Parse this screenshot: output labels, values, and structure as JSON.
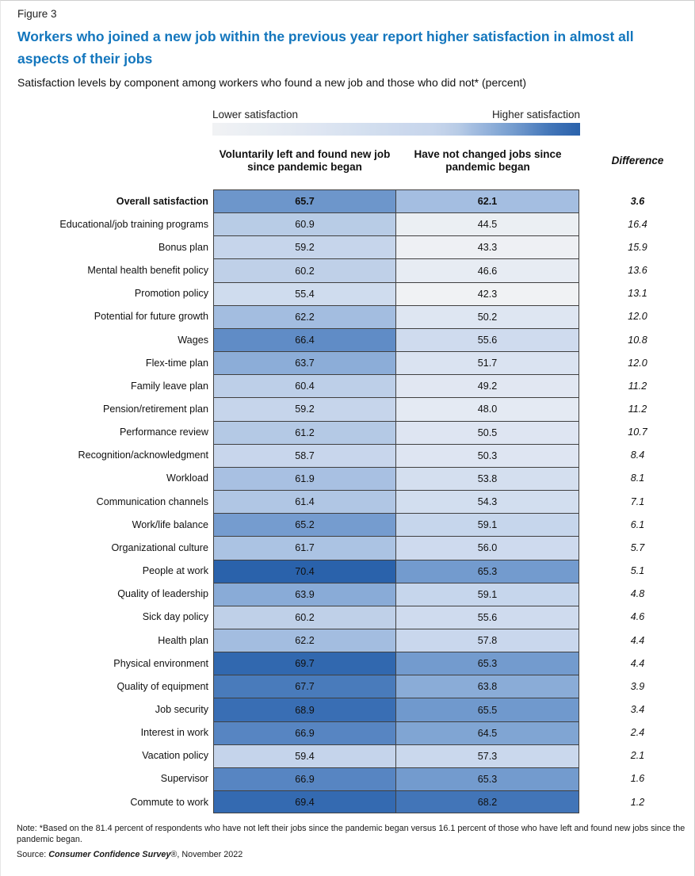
{
  "figure_label": "Figure 3",
  "title": "Workers who joined a new job within the previous year report higher satisfaction in almost all aspects of their jobs",
  "subtitle": "Satisfaction levels by component among workers who found a new job and those who did not* (percent)",
  "legend": {
    "low_label": "Lower satisfaction",
    "high_label": "Higher satisfaction"
  },
  "columns": {
    "col1": "Voluntarily left and found new job since pandemic began",
    "col2": "Have not changed jobs since pandemic began",
    "diff": "Difference"
  },
  "note": "Note: *Based on the 81.4 percent of respondents who have not left their jobs since the pandemic began versus 16.1 percent of those who have left and found new jobs since the pandemic began.",
  "source": {
    "prefix": "Source: ",
    "name": "Consumer Confidence Survey",
    "registered": "®",
    "suffix": ", November 2022"
  },
  "colors": {
    "title_blue": "#1376BD",
    "grid_border": "#404040",
    "page_border": "#CFCFCF",
    "scale_low": "#F1F2F4",
    "scale_high": "#2A62AB"
  },
  "chart_data": {
    "type": "heatmap",
    "title": "Workers who joined a new job within the previous year report higher satisfaction in almost all aspects of their jobs",
    "subtitle": "Satisfaction levels by component among workers who found a new job and those who did not* (percent)",
    "units": "percent",
    "legend": {
      "low": "Lower satisfaction",
      "high": "Higher satisfaction"
    },
    "categories": [
      "Overall satisfaction",
      "Educational/job training programs",
      "Bonus plan",
      "Mental health benefit policy",
      "Promotion policy",
      "Potential for future growth",
      "Wages",
      "Flex-time plan",
      "Family leave plan",
      "Pension/retirement plan",
      "Performance review",
      "Recognition/acknowledgment",
      "Workload",
      "Communication channels",
      "Work/life balance",
      "Organizational culture",
      "People at work",
      "Quality of leadership",
      "Sick day policy",
      "Health plan",
      "Physical environment",
      "Quality of equipment",
      "Job security",
      "Interest in work",
      "Vacation policy",
      "Supervisor",
      "Commute to work"
    ],
    "series": [
      {
        "name": "Voluntarily left and found new job since pandemic began",
        "values": [
          65.7,
          60.9,
          59.2,
          60.2,
          55.4,
          62.2,
          66.4,
          63.7,
          60.4,
          59.2,
          61.2,
          58.7,
          61.9,
          61.4,
          65.2,
          61.7,
          70.4,
          63.9,
          60.2,
          62.2,
          69.7,
          67.7,
          68.9,
          66.9,
          59.4,
          66.9,
          69.4
        ]
      },
      {
        "name": "Have not changed jobs since pandemic began",
        "values": [
          62.1,
          44.5,
          43.3,
          46.6,
          42.3,
          50.2,
          55.6,
          51.7,
          49.2,
          48.0,
          50.5,
          50.3,
          53.8,
          54.3,
          59.1,
          56.0,
          65.3,
          59.1,
          55.6,
          57.8,
          65.3,
          63.8,
          65.5,
          64.5,
          57.3,
          65.3,
          68.2
        ]
      }
    ],
    "difference": [
      3.6,
      16.4,
      15.9,
      13.6,
      13.1,
      12.0,
      10.8,
      12.0,
      11.2,
      11.2,
      10.7,
      8.4,
      8.1,
      7.1,
      6.1,
      5.7,
      5.1,
      4.8,
      4.6,
      4.4,
      4.4,
      3.9,
      3.4,
      2.4,
      2.1,
      1.6,
      1.2
    ],
    "bold_rows": [
      0
    ],
    "value_decimals": 1,
    "color_scale": [
      {
        "value": 42.0,
        "color": "#F1F2F4"
      },
      {
        "value": 46.0,
        "color": "#E8EDF3"
      },
      {
        "value": 50.0,
        "color": "#DFE6F2"
      },
      {
        "value": 54.0,
        "color": "#D3DFEF"
      },
      {
        "value": 57.0,
        "color": "#CBD8ED"
      },
      {
        "value": 59.0,
        "color": "#C7D6EC"
      },
      {
        "value": 60.0,
        "color": "#C1D1E9"
      },
      {
        "value": 61.0,
        "color": "#B7CBE6"
      },
      {
        "value": 62.0,
        "color": "#A6BFE1"
      },
      {
        "value": 63.0,
        "color": "#97B4DC"
      },
      {
        "value": 64.0,
        "color": "#87AAD6"
      },
      {
        "value": 65.0,
        "color": "#789FD0"
      },
      {
        "value": 66.0,
        "color": "#6892C9"
      },
      {
        "value": 67.0,
        "color": "#5584C1"
      },
      {
        "value": 68.0,
        "color": "#4477B9"
      },
      {
        "value": 69.0,
        "color": "#386DB3"
      },
      {
        "value": 70.4,
        "color": "#2A62AB"
      }
    ]
  }
}
